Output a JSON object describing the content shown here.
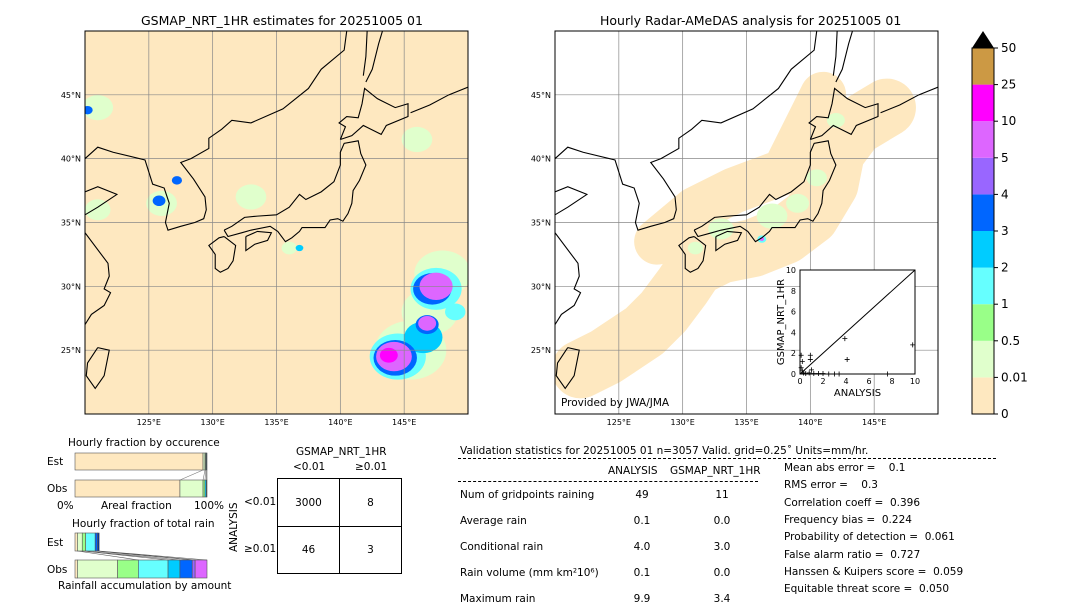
{
  "left_map": {
    "title": "GSMAP_NRT_1HR estimates for 20251005 01",
    "lon_ticks": [
      "125°E",
      "130°E",
      "135°E",
      "140°E",
      "145°E"
    ],
    "lat_ticks": [
      "45°N",
      "40°N",
      "35°N",
      "30°N",
      "25°N"
    ]
  },
  "right_map": {
    "title": "Hourly Radar-AMeDAS analysis for 20251005 01",
    "lon_ticks": [
      "125°E",
      "130°E",
      "135°E",
      "140°E",
      "145°E"
    ],
    "lat_ticks": [
      "45°N",
      "40°N",
      "35°N",
      "30°N",
      "25°N"
    ],
    "credit": "Provided by JWA/JMA"
  },
  "colorbar": {
    "labels": [
      "0",
      "0.01",
      "0.5",
      "1",
      "2",
      "3",
      "4",
      "5",
      "10",
      "25",
      "50"
    ],
    "colors": [
      "#fee8c0",
      "#e0ffcc",
      "#99ff88",
      "#66ffff",
      "#00ccff",
      "#0066ff",
      "#9966ff",
      "#dd66ff",
      "#ff00ff",
      "#cc9944"
    ],
    "extend_color": "#000000"
  },
  "chart_data": [
    {
      "type": "scatter",
      "xlabel": "ANALYSIS",
      "ylabel": "GSMAP_NRT_1HR",
      "xlim": [
        0,
        10
      ],
      "ylim": [
        0,
        10
      ],
      "x_ticks": [
        "0",
        "2",
        "4",
        "6",
        "8",
        "10"
      ],
      "y_ticks": [
        "0",
        "2",
        "4",
        "6",
        "8",
        "10"
      ],
      "points": [
        [
          3.9,
          3.4
        ],
        [
          4.1,
          1.4
        ],
        [
          9.8,
          2.8
        ],
        [
          0.9,
          1.8
        ],
        [
          0.9,
          1.4
        ],
        [
          0.1,
          1.8
        ],
        [
          0.2,
          1.2
        ],
        [
          1.0,
          0.4
        ],
        [
          0.3,
          0.1
        ],
        [
          0.5,
          0.05
        ],
        [
          0.8,
          0.1
        ],
        [
          1.2,
          0.05
        ],
        [
          1.6,
          0.05
        ],
        [
          2.0,
          0.05
        ],
        [
          2.5,
          0.0
        ],
        [
          3.0,
          0.0
        ],
        [
          3.4,
          0.0
        ],
        [
          7.6,
          0.0
        ],
        [
          0.1,
          0.6
        ],
        [
          0.2,
          0.3
        ]
      ],
      "diagonal": true
    },
    {
      "type": "bar",
      "title": "Hourly fraction by occurence",
      "xlabel": "Areal fraction",
      "x_ticks": [
        "0%",
        "100%"
      ],
      "categories": [
        "Est",
        "Obs"
      ],
      "stacked_fractions": {
        "Est": [
          0.97,
          0.015,
          0.005,
          0.005,
          0.005
        ],
        "Obs": [
          0.795,
          0.175,
          0.015,
          0.01,
          0.005
        ]
      }
    },
    {
      "type": "bar",
      "title": "Hourly fraction of total rain",
      "xlabel": "Rainfall accumulation by amount",
      "categories": [
        "Est",
        "Obs"
      ],
      "stacked_fractions": {
        "Est": [
          0.018,
          0.037,
          0.026,
          0.072,
          0.018,
          0.012
        ],
        "Obs": [
          0.018,
          0.305,
          0.157,
          0.225,
          0.09,
          0.093,
          0.022,
          0.09
        ]
      }
    },
    {
      "type": "table",
      "title": "GSMAP_NRT_1HR",
      "col_headers": [
        "<0.01",
        "≥0.01"
      ],
      "row_label": "ANALYSIS",
      "row_headers": [
        "<0.01",
        "≥0.01"
      ],
      "cells": [
        [
          "3000",
          "8"
        ],
        [
          "46",
          "3"
        ]
      ]
    }
  ],
  "stats": {
    "header": "Validation statistics for 20251005 01  n=3057 Valid. grid=0.25˚ Units=mm/hr.",
    "col_analysis": "ANALYSIS",
    "col_gsmap": "GSMAP_NRT_1HR",
    "rows": [
      {
        "label": "Num of gridpoints raining",
        "analysis": "49",
        "gsmap": "11"
      },
      {
        "label": "Average rain",
        "analysis": "0.1",
        "gsmap": "0.0"
      },
      {
        "label": "Conditional rain",
        "analysis": "4.0",
        "gsmap": "3.0"
      },
      {
        "label": "Rain volume (mm km²10⁶)",
        "analysis": "0.1",
        "gsmap": "0.0"
      },
      {
        "label": "Maximum rain",
        "analysis": "9.9",
        "gsmap": "3.4"
      }
    ],
    "scores": [
      "Mean abs error =    0.1",
      "RMS error =    0.3",
      "Correlation coeff =  0.396",
      "Frequency bias =  0.224",
      "Probability of detection =  0.061",
      "False alarm ratio =  0.727",
      "Hanssen & Kuipers score =  0.059",
      "Equitable threat score =  0.050"
    ]
  }
}
